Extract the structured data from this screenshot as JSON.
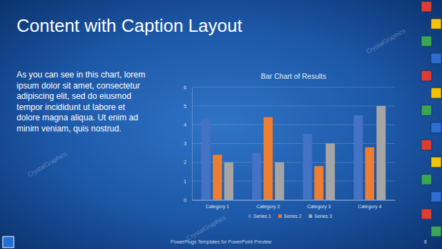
{
  "slide": {
    "title": "Content with Caption Layout",
    "caption": [
      "As you can see in this chart, lorem",
      "ipsum dolor sit amet, consectetur",
      "adipiscing elit, sed do eiusmod",
      "tempor incididunt ut labore et",
      "dolore magna aliqua. Ut enim ad",
      "minim veniam, quis nostrud."
    ],
    "watermark": "CrystalGraphics",
    "footer": "PowerPlugs Templates for PowerPoint Preview",
    "page_number": 8
  },
  "chart_data": {
    "type": "bar",
    "title": "Bar Chart of Results",
    "categories": [
      "Category 1",
      "Category 2",
      "Category 3",
      "Category 4"
    ],
    "series": [
      {
        "name": "Series 1",
        "color": "#4472c4",
        "values": [
          4.3,
          2.5,
          3.5,
          4.5
        ]
      },
      {
        "name": "Series 2",
        "color": "#ed7d31",
        "values": [
          2.4,
          4.4,
          1.8,
          2.8
        ]
      },
      {
        "name": "Series 3",
        "color": "#a5a5a5",
        "values": [
          2,
          2,
          3,
          5
        ]
      }
    ],
    "ylim": [
      0,
      6
    ],
    "yticks": [
      0,
      1,
      2,
      3,
      4,
      5,
      6
    ],
    "grid": true,
    "legend": "bottom"
  }
}
